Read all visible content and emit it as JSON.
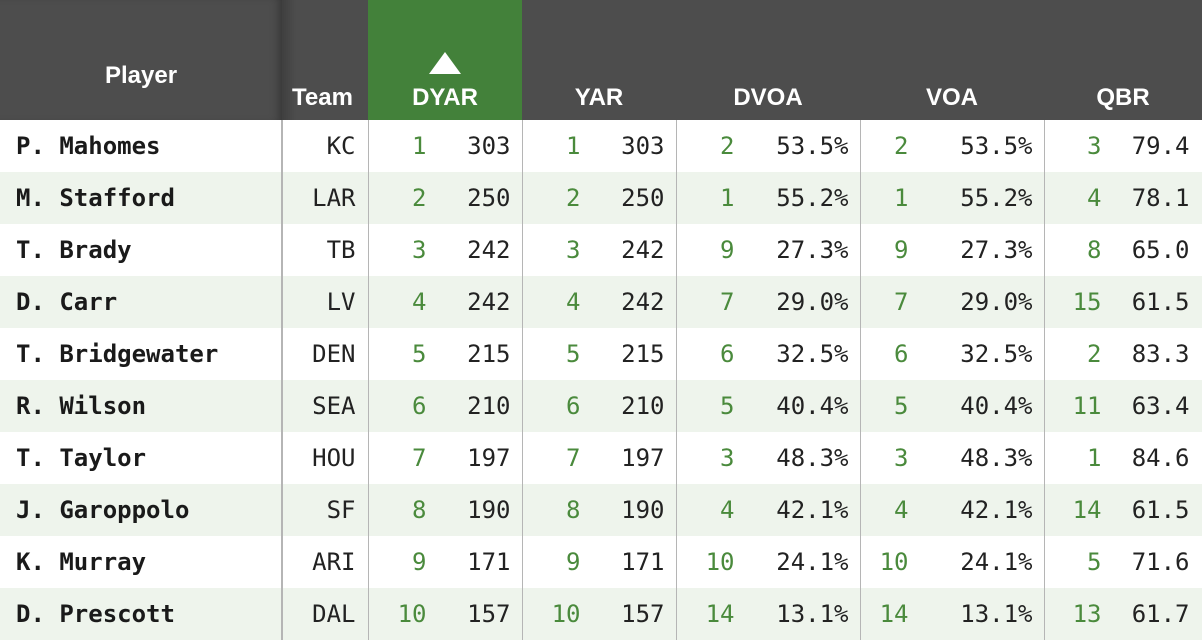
{
  "chart_data": {
    "type": "table",
    "sorted_by": "DYAR",
    "columns": [
      "Player",
      "Team",
      "DYAR",
      "YAR",
      "DVOA",
      "VOA",
      "QBR"
    ],
    "rows": [
      {
        "player": "P. Mahomes",
        "team": "KC",
        "dyar_rank": "1",
        "dyar": "303",
        "yar_rank": "1",
        "yar": "303",
        "dvoa_rank": "2",
        "dvoa": "53.5%",
        "voa_rank": "2",
        "voa": "53.5%",
        "qbr_rank": "3",
        "qbr": "79.4"
      },
      {
        "player": "M. Stafford",
        "team": "LAR",
        "dyar_rank": "2",
        "dyar": "250",
        "yar_rank": "2",
        "yar": "250",
        "dvoa_rank": "1",
        "dvoa": "55.2%",
        "voa_rank": "1",
        "voa": "55.2%",
        "qbr_rank": "4",
        "qbr": "78.1"
      },
      {
        "player": "T. Brady",
        "team": "TB",
        "dyar_rank": "3",
        "dyar": "242",
        "yar_rank": "3",
        "yar": "242",
        "dvoa_rank": "9",
        "dvoa": "27.3%",
        "voa_rank": "9",
        "voa": "27.3%",
        "qbr_rank": "8",
        "qbr": "65.0"
      },
      {
        "player": "D. Carr",
        "team": "LV",
        "dyar_rank": "4",
        "dyar": "242",
        "yar_rank": "4",
        "yar": "242",
        "dvoa_rank": "7",
        "dvoa": "29.0%",
        "voa_rank": "7",
        "voa": "29.0%",
        "qbr_rank": "15",
        "qbr": "61.5"
      },
      {
        "player": "T. Bridgewater",
        "team": "DEN",
        "dyar_rank": "5",
        "dyar": "215",
        "yar_rank": "5",
        "yar": "215",
        "dvoa_rank": "6",
        "dvoa": "32.5%",
        "voa_rank": "6",
        "voa": "32.5%",
        "qbr_rank": "2",
        "qbr": "83.3"
      },
      {
        "player": "R. Wilson",
        "team": "SEA",
        "dyar_rank": "6",
        "dyar": "210",
        "yar_rank": "6",
        "yar": "210",
        "dvoa_rank": "5",
        "dvoa": "40.4%",
        "voa_rank": "5",
        "voa": "40.4%",
        "qbr_rank": "11",
        "qbr": "63.4"
      },
      {
        "player": "T. Taylor",
        "team": "HOU",
        "dyar_rank": "7",
        "dyar": "197",
        "yar_rank": "7",
        "yar": "197",
        "dvoa_rank": "3",
        "dvoa": "48.3%",
        "voa_rank": "3",
        "voa": "48.3%",
        "qbr_rank": "1",
        "qbr": "84.6"
      },
      {
        "player": "J. Garoppolo",
        "team": "SF",
        "dyar_rank": "8",
        "dyar": "190",
        "yar_rank": "8",
        "yar": "190",
        "dvoa_rank": "4",
        "dvoa": "42.1%",
        "voa_rank": "4",
        "voa": "42.1%",
        "qbr_rank": "14",
        "qbr": "61.5"
      },
      {
        "player": "K. Murray",
        "team": "ARI",
        "dyar_rank": "9",
        "dyar": "171",
        "yar_rank": "9",
        "yar": "171",
        "dvoa_rank": "10",
        "dvoa": "24.1%",
        "voa_rank": "10",
        "voa": "24.1%",
        "qbr_rank": "5",
        "qbr": "71.6"
      },
      {
        "player": "D. Prescott",
        "team": "DAL",
        "dyar_rank": "10",
        "dyar": "157",
        "yar_rank": "10",
        "yar": "157",
        "dvoa_rank": "14",
        "dvoa": "13.1%",
        "voa_rank": "14",
        "voa": "13.1%",
        "qbr_rank": "13",
        "qbr": "61.7"
      }
    ]
  },
  "colors": {
    "header_bg": "#4d4d4d",
    "sorted_header_bg": "#43813a",
    "rank_text": "#4a8a3c",
    "alt_row_bg": "#eef4ec"
  },
  "icons": {
    "sort_indicator": "triangle-up-icon"
  }
}
